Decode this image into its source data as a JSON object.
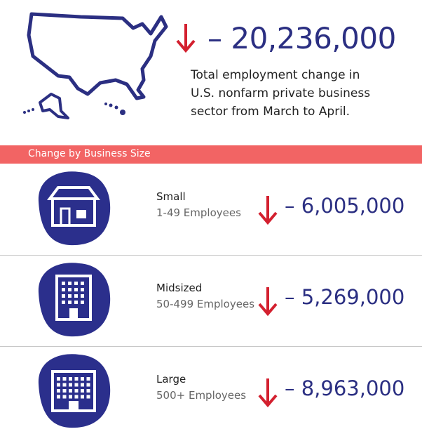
{
  "header": {
    "change": "– 20,236,000",
    "description": [
      "Total employment change in",
      "U.S. nonfarm private business",
      "sector from March to April."
    ]
  },
  "section_title": "Change by Business Size",
  "rows": [
    {
      "label": "Small",
      "sublabel": "1-49 Employees",
      "change": "– 6,005,000"
    },
    {
      "label": "Midsized",
      "sublabel": "50-499 Employees",
      "change": "– 5,269,000"
    },
    {
      "label": "Large",
      "sublabel": "500+ Employees",
      "change": "– 8,963,000"
    }
  ]
}
